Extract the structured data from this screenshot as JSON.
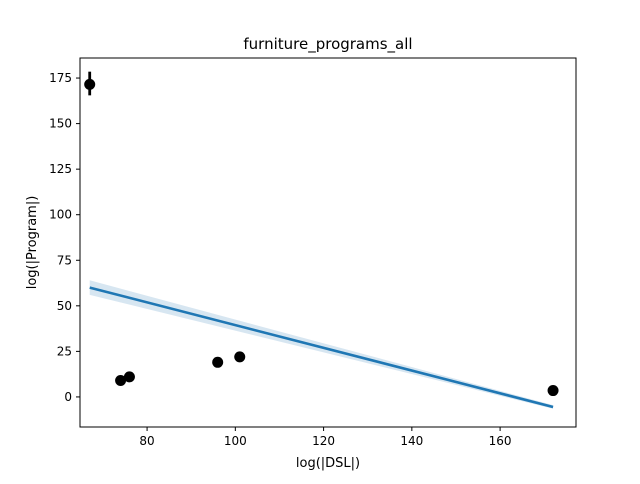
{
  "chart_data": {
    "type": "scatter",
    "title": "furniture_programs_all",
    "xlabel": "log(|DSL|)",
    "ylabel": "log(|Program|)",
    "xlim": [
      64.8,
      177.2
    ],
    "ylim": [
      -16.5,
      186.0
    ],
    "xticks": [
      80,
      100,
      120,
      140,
      160
    ],
    "yticks": [
      0,
      25,
      50,
      75,
      100,
      125,
      150,
      175
    ],
    "grid": false,
    "points": [
      {
        "x": 67,
        "y": 171.5,
        "err_low": 165.5,
        "err_high": 178.5
      },
      {
        "x": 74,
        "y": 9
      },
      {
        "x": 76,
        "y": 11
      },
      {
        "x": 96,
        "y": 19
      },
      {
        "x": 101,
        "y": 22
      },
      {
        "x": 172,
        "y": 3.5
      }
    ],
    "regression": {
      "x": [
        67,
        172
      ],
      "y": [
        60,
        -5.5
      ],
      "ci_upper": [
        64,
        -4.5
      ],
      "ci_lower": [
        56,
        -6.5
      ]
    },
    "colors": {
      "points": "#000000",
      "line": "#1f77b4",
      "ci_band": "#1f77b4"
    }
  }
}
